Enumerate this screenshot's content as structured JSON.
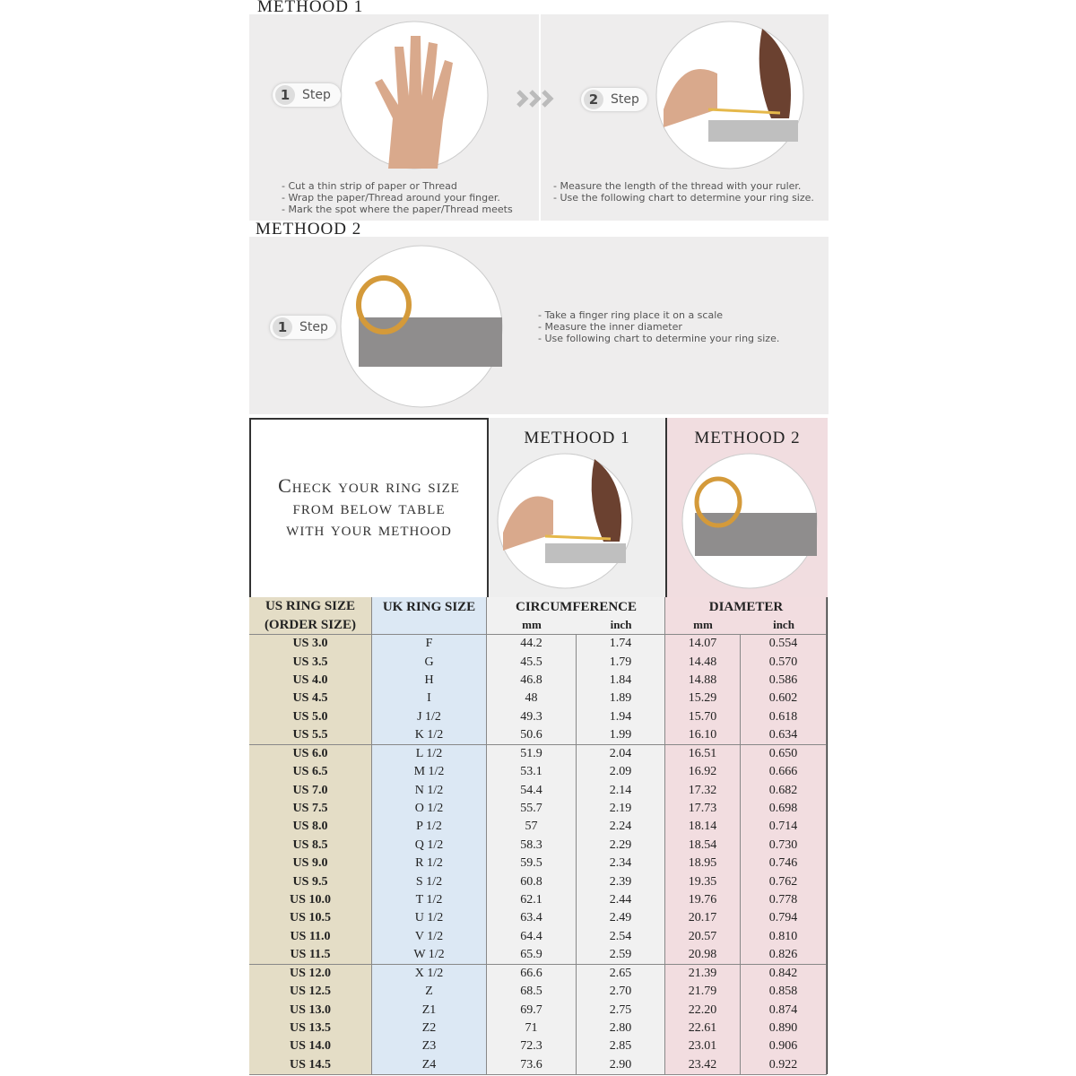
{
  "method1": {
    "title": "METHOOD 1",
    "steps": [
      {
        "number": "1",
        "label": "Step",
        "bullets": [
          "- Cut a thin strip of paper or Thread",
          "- Wrap the paper/Thread around your finger.",
          "- Mark the spot where the paper/Thread meets"
        ]
      },
      {
        "number": "2",
        "label": "Step",
        "bullets": [
          "- Measure the length of the thread with your ruler.",
          "- Use the following chart to determine your ring size."
        ]
      }
    ]
  },
  "method2": {
    "title": "METHOOD 2",
    "steps": [
      {
        "number": "1",
        "label": "Step",
        "bullets": [
          "- Take a finger ring place it on a scale",
          "- Measure the inner diameter",
          "- Use following chart to determine your ring size."
        ]
      }
    ]
  },
  "table": {
    "intro": [
      "Check your ring size",
      "from below table",
      "with your methood"
    ],
    "method_headers": [
      "METHOOD 1",
      "METHOOD 2"
    ],
    "us_header": "US RING SIZE (ORDER SIZE)",
    "uk_header": "UK RING SIZE",
    "circumference": {
      "title": "CIRCUMFERENCE",
      "units": [
        "mm",
        "inch"
      ]
    },
    "diameter": {
      "title": "DIAMETER",
      "units": [
        "mm",
        "inch"
      ]
    },
    "rows": [
      [
        "US 3.0",
        "F",
        "44.2",
        "1.74",
        "14.07",
        "0.554"
      ],
      [
        "US 3.5",
        "G",
        "45.5",
        "1.79",
        "14.48",
        "0.570"
      ],
      [
        "US 4.0",
        "H",
        "46.8",
        "1.84",
        "14.88",
        "0.586"
      ],
      [
        "US 4.5",
        "I",
        "48",
        "1.89",
        "15.29",
        "0.602"
      ],
      [
        "US 5.0",
        "J 1/2",
        "49.3",
        "1.94",
        "15.70",
        "0.618"
      ],
      [
        "US 5.5",
        "K 1/2",
        "50.6",
        "1.99",
        "16.10",
        "0.634"
      ],
      [
        "US 6.0",
        "L 1/2",
        "51.9",
        "2.04",
        "16.51",
        "0.650"
      ],
      [
        "US 6.5",
        "M 1/2",
        "53.1",
        "2.09",
        "16.92",
        "0.666"
      ],
      [
        "US 7.0",
        "N 1/2",
        "54.4",
        "2.14",
        "17.32",
        "0.682"
      ],
      [
        "US 7.5",
        "O 1/2",
        "55.7",
        "2.19",
        "17.73",
        "0.698"
      ],
      [
        "US 8.0",
        "P 1/2",
        "57",
        "2.24",
        "18.14",
        "0.714"
      ],
      [
        "US 8.5",
        "Q 1/2",
        "58.3",
        "2.29",
        "18.54",
        "0.730"
      ],
      [
        "US 9.0",
        "R 1/2",
        "59.5",
        "2.34",
        "18.95",
        "0.746"
      ],
      [
        "US 9.5",
        "S 1/2",
        "60.8",
        "2.39",
        "19.35",
        "0.762"
      ],
      [
        "US 10.0",
        "T 1/2",
        "62.1",
        "2.44",
        "19.76",
        "0.778"
      ],
      [
        "US 10.5",
        "U 1/2",
        "63.4",
        "2.49",
        "20.17",
        "0.794"
      ],
      [
        "US 11.0",
        "V 1/2",
        "64.4",
        "2.54",
        "20.57",
        "0.810"
      ],
      [
        "US 11.5",
        "W 1/2",
        "65.9",
        "2.59",
        "20.98",
        "0.826"
      ],
      [
        "US 12.0",
        "X 1/2",
        "66.6",
        "2.65",
        "21.39",
        "0.842"
      ],
      [
        "US 12.5",
        "Z",
        "68.5",
        "2.70",
        "21.79",
        "0.858"
      ],
      [
        "US 13.0",
        "Z1",
        "69.7",
        "2.75",
        "22.20",
        "0.874"
      ],
      [
        "US 13.5",
        "Z2",
        "71",
        "2.80",
        "22.61",
        "0.890"
      ],
      [
        "US 14.0",
        "Z3",
        "72.3",
        "2.85",
        "23.01",
        "0.906"
      ],
      [
        "US 14.5",
        "Z4",
        "73.6",
        "2.90",
        "23.42",
        "0.922"
      ]
    ]
  }
}
